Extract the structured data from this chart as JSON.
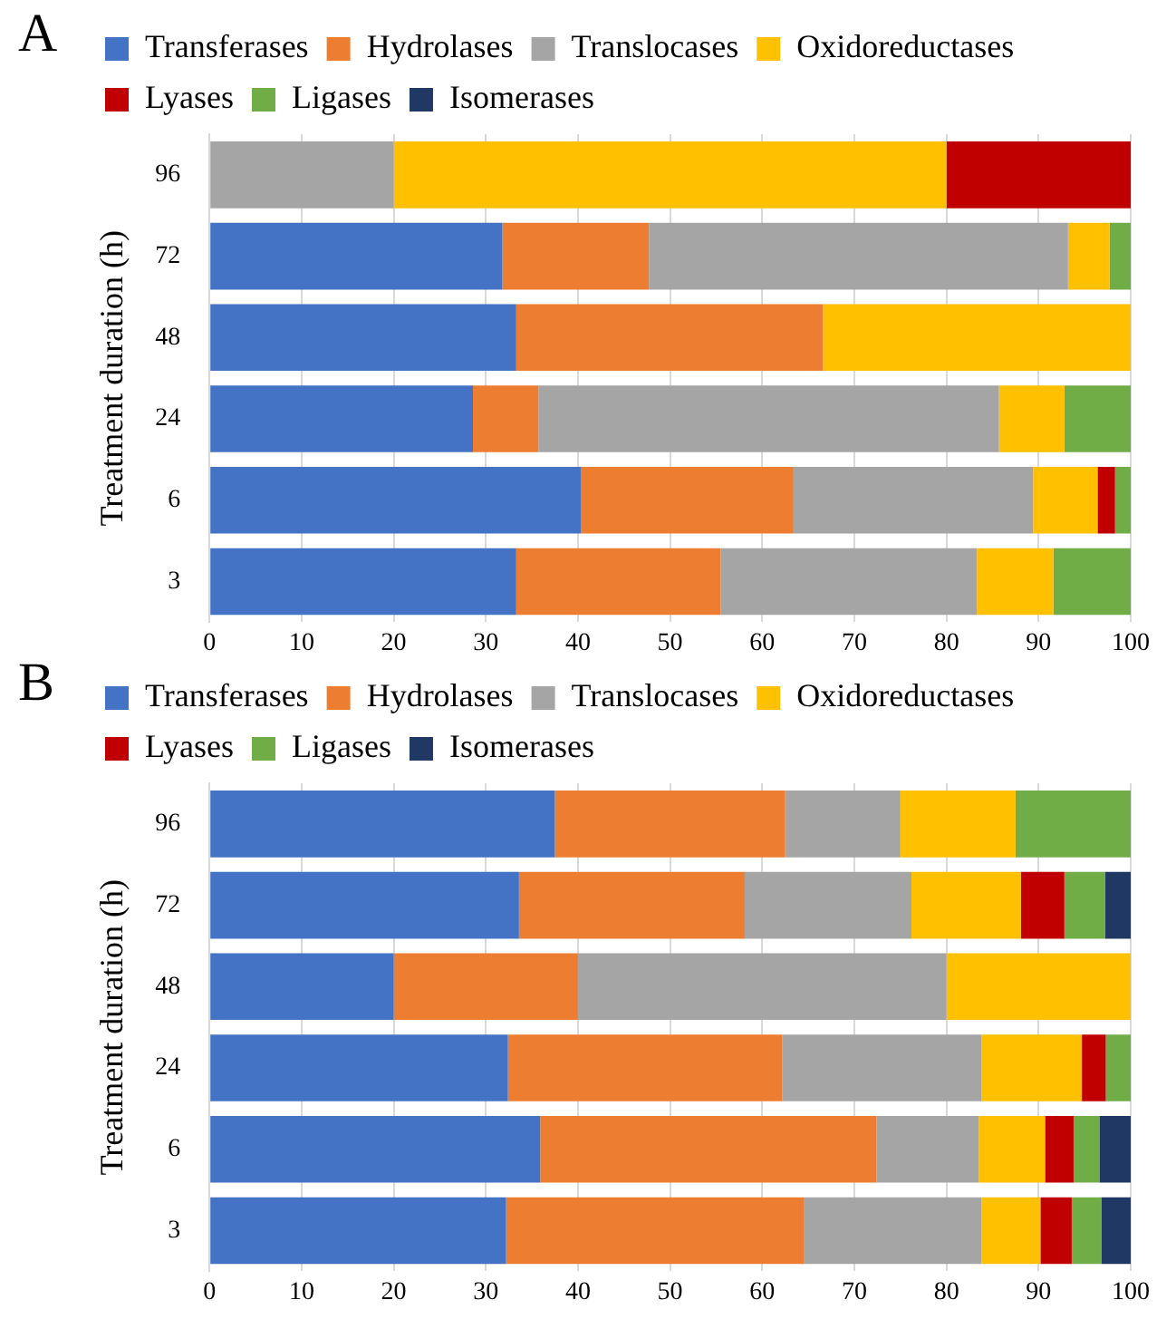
{
  "chart_data": [
    {
      "type": "bar",
      "title": "A",
      "orientation": "horizontal",
      "stacked": true,
      "ylabel": "Treatment duration (h)",
      "categories": [
        "96",
        "72",
        "48",
        "24",
        "6",
        "3"
      ],
      "xlim": [
        0,
        100
      ],
      "xticks": [
        0,
        10,
        20,
        30,
        40,
        50,
        60,
        70,
        80,
        90,
        100
      ],
      "grid": "x",
      "legend": "top",
      "series": [
        {
          "name": "Transferases",
          "color": "#4472c4",
          "values": [
            0,
            31.8,
            33.3,
            28.6,
            40.3,
            33.3
          ]
        },
        {
          "name": "Hydrolases",
          "color": "#ed7d31",
          "values": [
            0,
            15.9,
            33.3,
            7.1,
            23.1,
            22.2
          ]
        },
        {
          "name": "Translocases",
          "color": "#a5a5a5",
          "values": [
            20,
            45.5,
            0,
            50,
            26,
            27.8
          ]
        },
        {
          "name": "Oxidoreductases",
          "color": "#ffc000",
          "values": [
            60,
            4.5,
            33.4,
            7.1,
            7,
            8.3
          ]
        },
        {
          "name": "Lyases",
          "color": "#c00000",
          "values": [
            20,
            0,
            0,
            0,
            1.9,
            0
          ]
        },
        {
          "name": "Ligases",
          "color": "#70ad47",
          "values": [
            0,
            2.3,
            0,
            7.2,
            1.7,
            8.4
          ]
        },
        {
          "name": "Isomerases",
          "color": "#203864",
          "values": [
            0,
            0,
            0,
            0,
            0,
            0
          ]
        }
      ]
    },
    {
      "type": "bar",
      "title": "B",
      "orientation": "horizontal",
      "stacked": true,
      "ylabel": "Treatment duration (h)",
      "categories": [
        "96",
        "72",
        "48",
        "24",
        "6",
        "3"
      ],
      "xlim": [
        0,
        100
      ],
      "xticks": [
        0,
        10,
        20,
        30,
        40,
        50,
        60,
        70,
        80,
        90,
        100
      ],
      "grid": "x",
      "legend": "top",
      "series": [
        {
          "name": "Transferases",
          "color": "#4472c4",
          "values": [
            37.5,
            33.6,
            20,
            32.4,
            35.9,
            32.2
          ]
        },
        {
          "name": "Hydrolases",
          "color": "#ed7d31",
          "values": [
            25,
            24.5,
            20,
            29.8,
            36.5,
            32.3
          ]
        },
        {
          "name": "Translocases",
          "color": "#a5a5a5",
          "values": [
            12.5,
            18.1,
            40,
            21.6,
            11.1,
            19.3
          ]
        },
        {
          "name": "Oxidoreductases",
          "color": "#ffc000",
          "values": [
            12.5,
            11.9,
            20,
            10.9,
            7.2,
            6.4
          ]
        },
        {
          "name": "Lyases",
          "color": "#c00000",
          "values": [
            0,
            4.7,
            0,
            2.6,
            3.1,
            3.4
          ]
        },
        {
          "name": "Ligases",
          "color": "#70ad47",
          "values": [
            12.5,
            4.4,
            0,
            2.7,
            2.8,
            3.2
          ]
        },
        {
          "name": "Isomerases",
          "color": "#203864",
          "values": [
            0,
            2.8,
            0,
            0,
            3.4,
            3.2
          ]
        }
      ]
    }
  ]
}
